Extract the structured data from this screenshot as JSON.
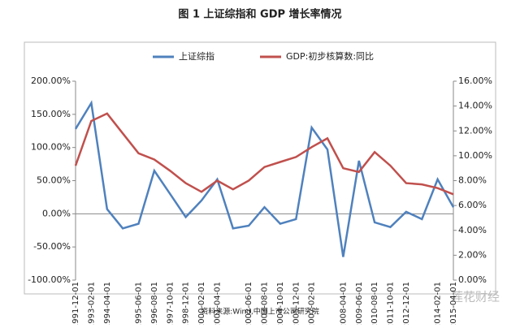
{
  "chart_data": {
    "type": "line",
    "title": "图 1  上证综指和 GDP 增长率情况",
    "source": "资料来源:Wind,中国上市公司研究院",
    "watermark": "莲花财经",
    "categories": [
      "1991-12-01",
      "1993-02-01",
      "1994-04-01",
      null,
      "1995-06-01",
      "1996-08-01",
      "1997-10-01",
      "1998-12-01",
      "2000-02-01",
      "2001-04-01",
      null,
      "2002-06-01",
      "2003-08-01",
      "2004-10-01",
      "2005-12-01",
      "2007-02-01",
      null,
      "2008-04-01",
      "2009-06-01",
      "2010-08-01",
      "2011-10-01",
      "2012-12-01",
      null,
      "2014-02-01",
      "2015-04-01"
    ],
    "series": [
      {
        "name": "上证综指",
        "color": "#4f81bd",
        "values": [
          128,
          167,
          7,
          -22,
          -15,
          65,
          30,
          -5,
          20,
          52,
          -22,
          -18,
          10,
          -15,
          -8,
          130,
          97,
          -65,
          80,
          -13,
          -20,
          3,
          -8,
          52,
          10
        ]
      },
      {
        "name": "GDP:初步核算数:同比",
        "color": "#c0504d",
        "axis": "y2",
        "values": [
          9.2,
          12.8,
          13.4,
          11.8,
          10.2,
          9.7,
          8.8,
          7.8,
          7.1,
          8.0,
          7.3,
          8.0,
          9.1,
          9.5,
          9.9,
          10.7,
          11.4,
          9.0,
          8.7,
          10.3,
          9.2,
          7.8,
          7.7,
          7.4,
          6.9
        ]
      }
    ],
    "ylim": [
      -100,
      200
    ],
    "yticks": [
      {
        "value": -100,
        "label": "-100.00%"
      },
      {
        "value": -50,
        "label": "-50.00%"
      },
      {
        "value": 0,
        "label": "0.00%"
      },
      {
        "value": 50,
        "label": "50.00%"
      },
      {
        "value": 100,
        "label": "100.00%"
      },
      {
        "value": 150,
        "label": "150.00%"
      },
      {
        "value": 200,
        "label": "200.00%"
      }
    ],
    "y2lim": [
      0,
      16
    ],
    "y2ticks": [
      {
        "value": 0,
        "label": "0.00%"
      },
      {
        "value": 2,
        "label": "2.00%"
      },
      {
        "value": 4,
        "label": "4.00%"
      },
      {
        "value": 6,
        "label": "6.00%"
      },
      {
        "value": 8,
        "label": "8.00%"
      },
      {
        "value": 10,
        "label": "10.00%"
      },
      {
        "value": 12,
        "label": "12.00%"
      },
      {
        "value": 14,
        "label": "14.00%"
      },
      {
        "value": 16,
        "label": "16.00%"
      }
    ],
    "legend": "top"
  }
}
